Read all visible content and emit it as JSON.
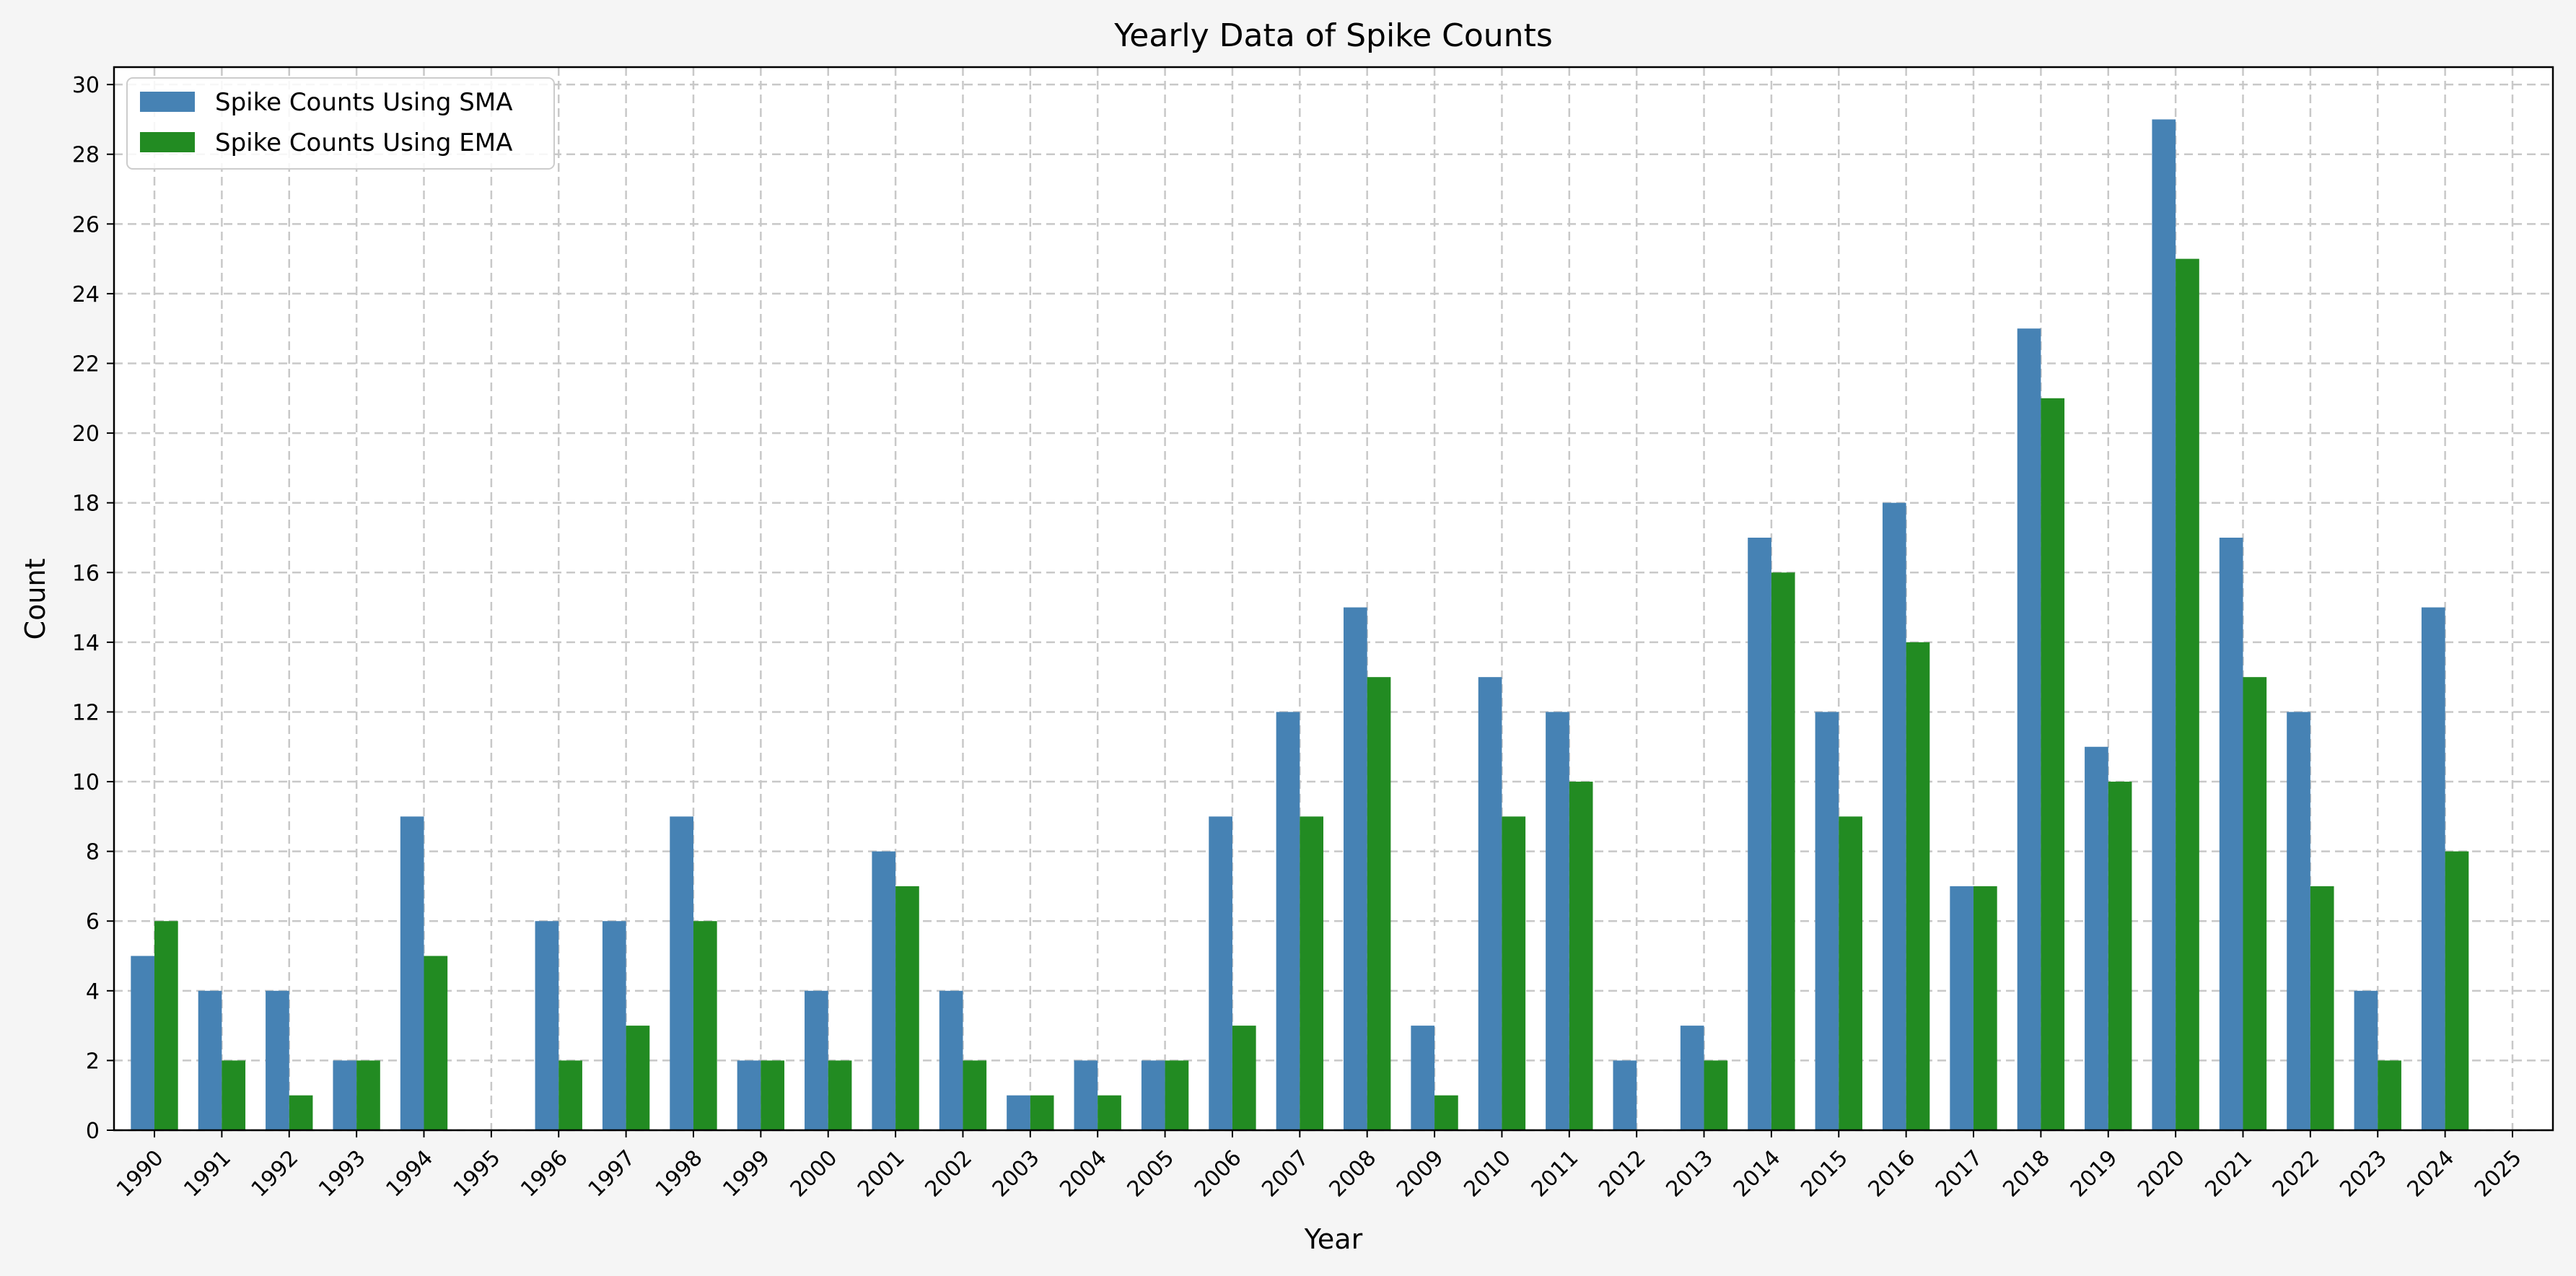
{
  "chart_data": {
    "type": "bar",
    "title": "Yearly Data of Spike Counts",
    "xlabel": "Year",
    "ylabel": "Count",
    "ylim": [
      0,
      30.5
    ],
    "yticks": [
      0,
      2,
      4,
      6,
      8,
      10,
      12,
      14,
      16,
      18,
      20,
      22,
      24,
      26,
      28,
      30
    ],
    "grid": true,
    "legend_position": "top-left",
    "categories": [
      "1990",
      "1991",
      "1992",
      "1993",
      "1994",
      "1995",
      "1996",
      "1997",
      "1998",
      "1999",
      "2000",
      "2001",
      "2002",
      "2003",
      "2004",
      "2005",
      "2006",
      "2007",
      "2008",
      "2009",
      "2010",
      "2011",
      "2012",
      "2013",
      "2014",
      "2015",
      "2016",
      "2017",
      "2018",
      "2019",
      "2020",
      "2021",
      "2022",
      "2023",
      "2024",
      "2025"
    ],
    "series": [
      {
        "name": "Spike Counts Using SMA",
        "color": "#4682b4",
        "values": [
          5,
          4,
          4,
          2,
          9,
          0,
          6,
          6,
          9,
          2,
          4,
          8,
          4,
          1,
          2,
          2,
          9,
          12,
          15,
          3,
          13,
          12,
          2,
          3,
          17,
          12,
          18,
          7,
          23,
          11,
          29,
          17,
          12,
          4,
          15,
          0
        ]
      },
      {
        "name": "Spike Counts Using EMA",
        "color": "#228b22",
        "values": [
          6,
          2,
          1,
          2,
          5,
          0,
          2,
          3,
          6,
          2,
          2,
          7,
          2,
          1,
          1,
          2,
          3,
          9,
          13,
          1,
          9,
          10,
          0,
          2,
          16,
          9,
          14,
          7,
          21,
          10,
          25,
          13,
          7,
          2,
          8,
          0
        ]
      }
    ]
  }
}
